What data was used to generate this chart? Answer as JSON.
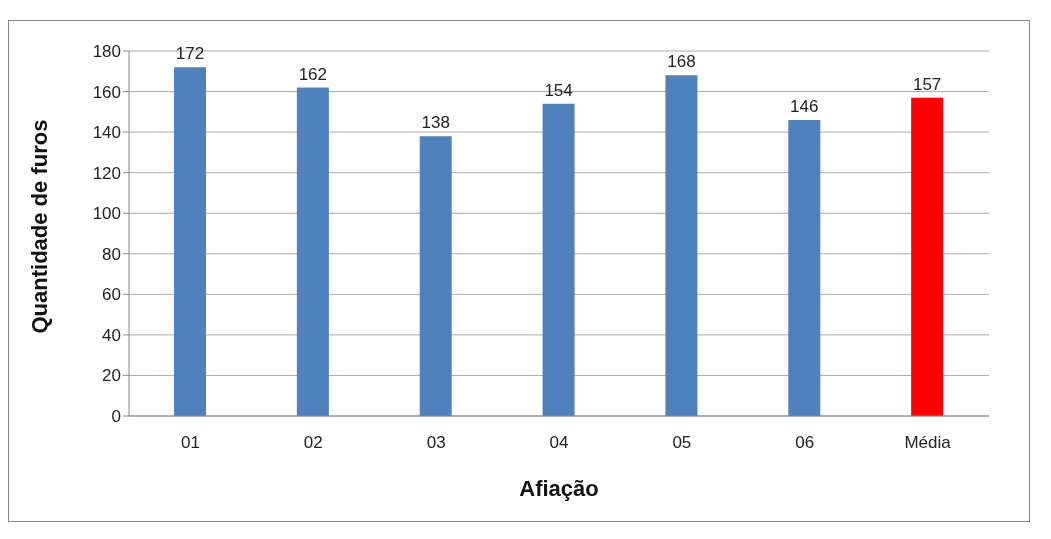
{
  "chart_data": {
    "type": "bar",
    "xlabel": "Afiação",
    "ylabel": "Quantidade de furos",
    "categories": [
      "01",
      "02",
      "03",
      "04",
      "05",
      "06",
      "Média"
    ],
    "values": [
      172,
      162,
      138,
      154,
      168,
      146,
      157
    ],
    "colors": [
      "#4f81bd",
      "#4f81bd",
      "#4f81bd",
      "#4f81bd",
      "#4f81bd",
      "#4f81bd",
      "#ff0000"
    ],
    "ylim": [
      0,
      180
    ],
    "yticks": [
      0,
      20,
      40,
      60,
      80,
      100,
      120,
      140,
      160,
      180
    ],
    "grid": "y",
    "data_labels": true
  }
}
